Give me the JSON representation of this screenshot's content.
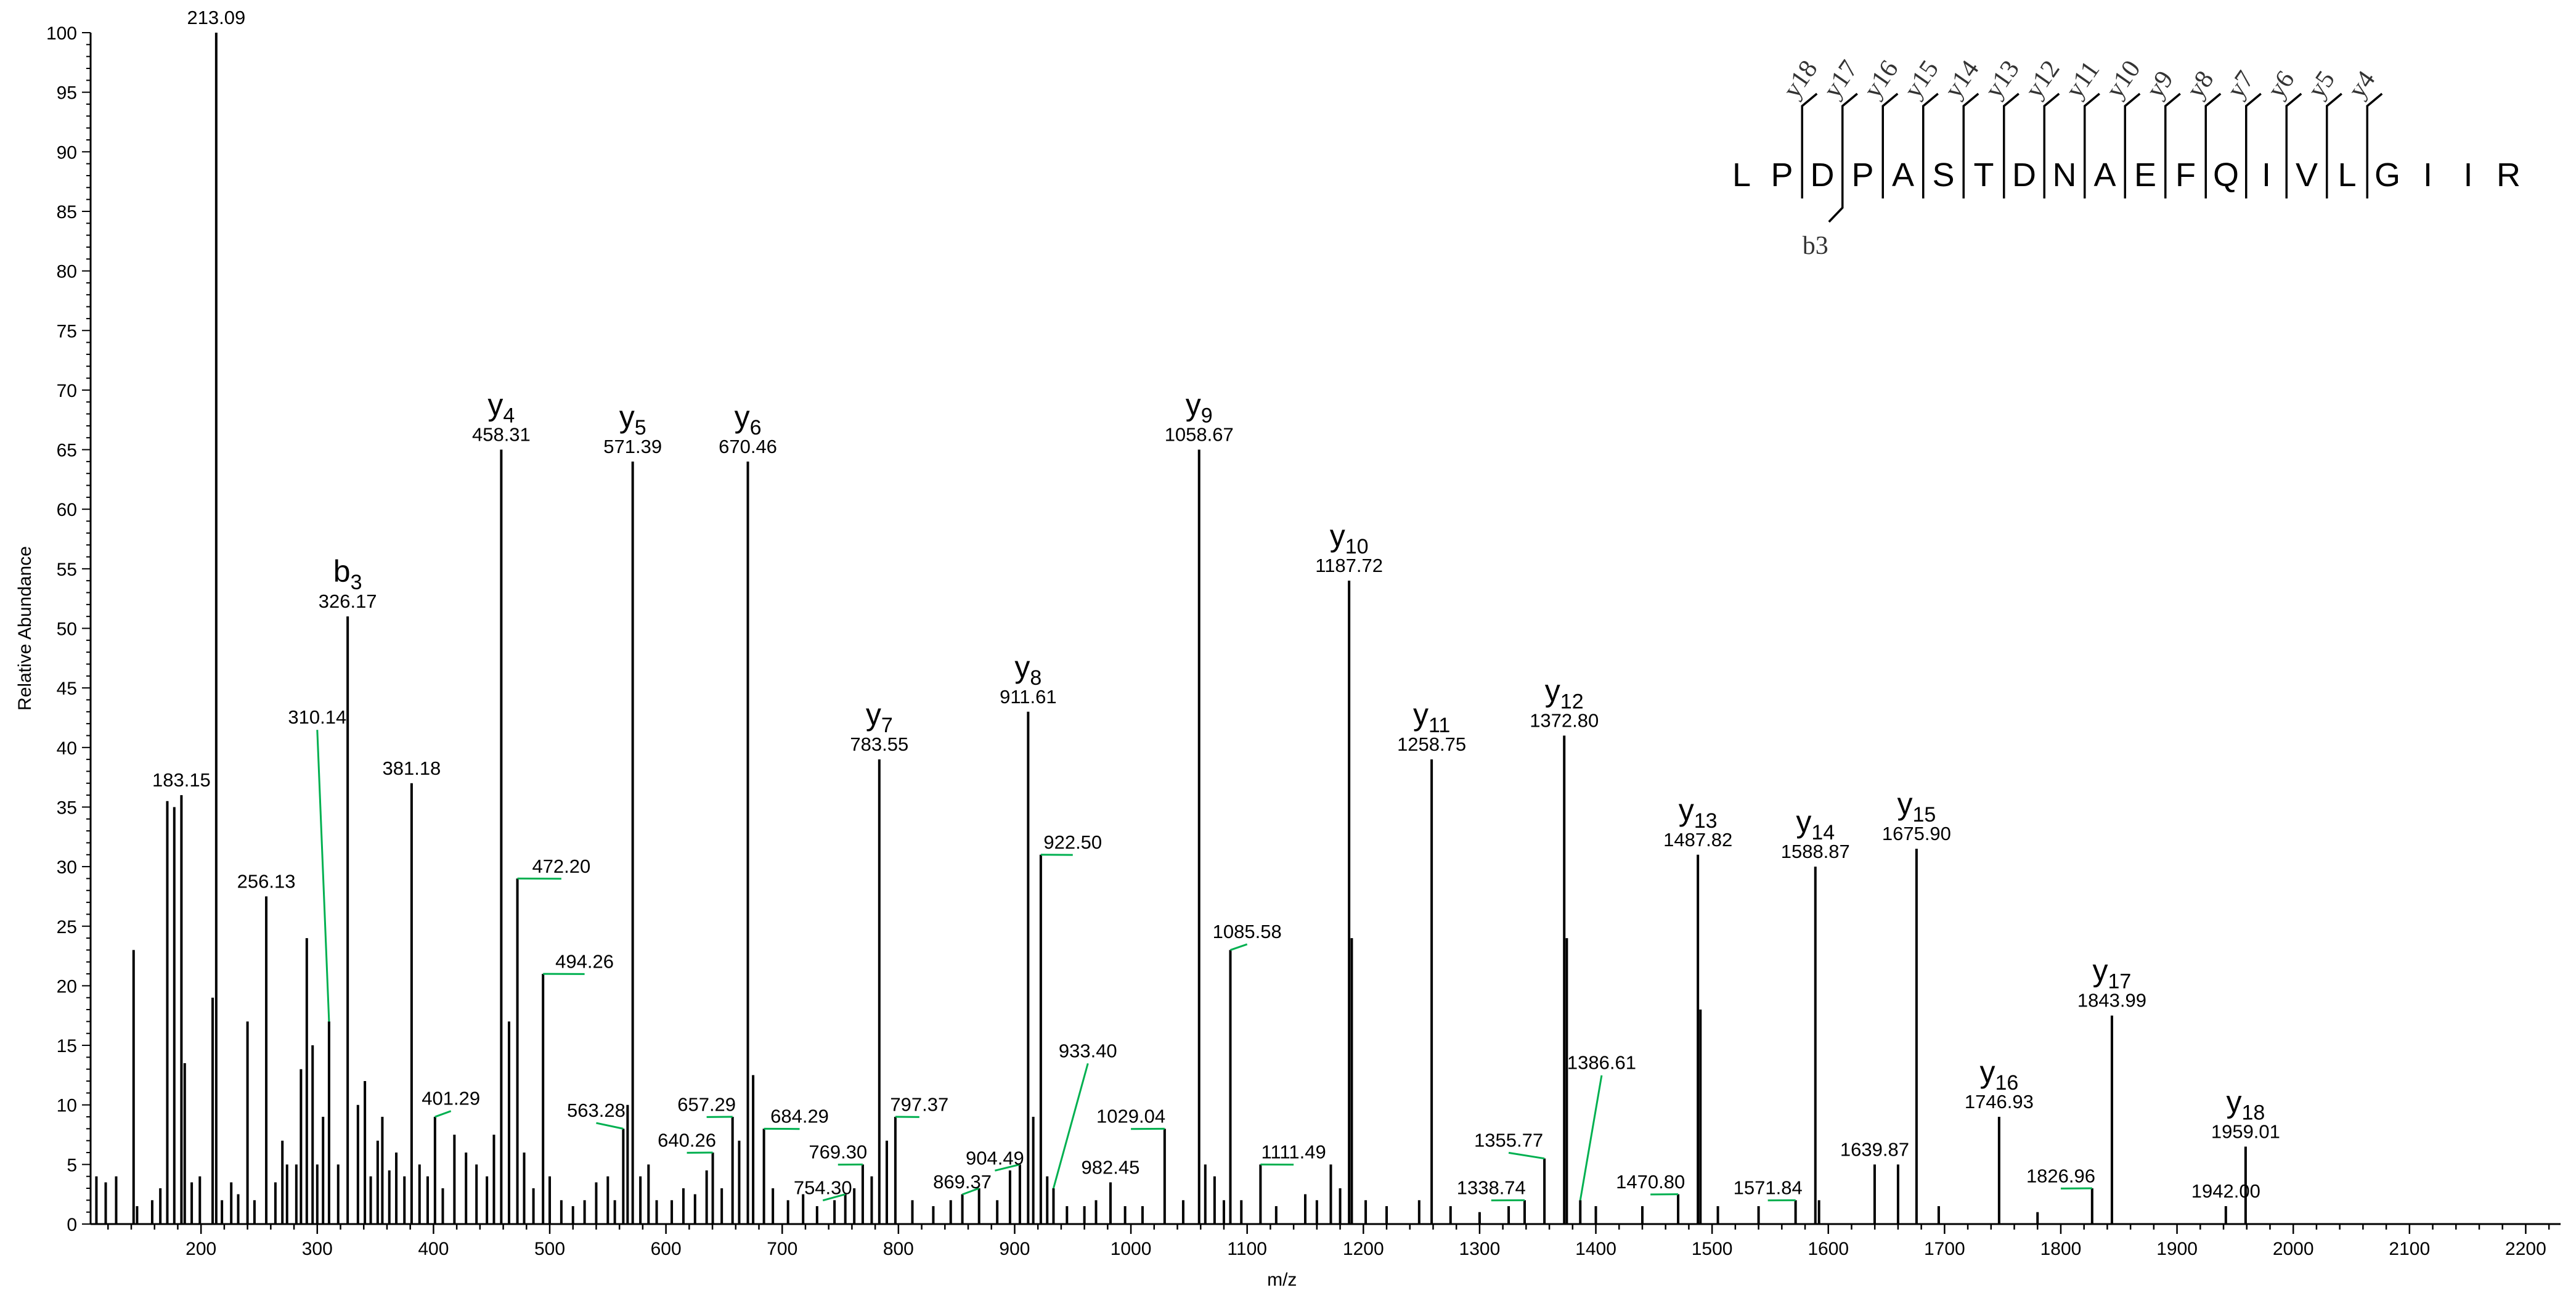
{
  "chart_data": {
    "type": "bar",
    "xlabel": "m/z",
    "ylabel": "Relative Abundance",
    "xlim": [
      105,
      2230
    ],
    "ylim": [
      0,
      100
    ],
    "x_ticks": [
      200,
      300,
      400,
      500,
      600,
      700,
      800,
      900,
      1000,
      1100,
      1200,
      1300,
      1400,
      1500,
      1600,
      1700,
      1800,
      1900,
      2000,
      2100,
      2200
    ],
    "y_ticks": [
      0,
      5,
      10,
      15,
      20,
      25,
      30,
      35,
      40,
      45,
      50,
      55,
      60,
      65,
      70,
      75,
      80,
      85,
      90,
      95,
      100
    ],
    "peaks": [
      {
        "mz": 110,
        "intensity": 4
      },
      {
        "mz": 118,
        "intensity": 3.5
      },
      {
        "mz": 127,
        "intensity": 4
      },
      {
        "mz": 142,
        "intensity": 23
      },
      {
        "mz": 145,
        "intensity": 1.5
      },
      {
        "mz": 158,
        "intensity": 2
      },
      {
        "mz": 165,
        "intensity": 3
      },
      {
        "mz": 171,
        "intensity": 35.5
      },
      {
        "mz": 177,
        "intensity": 35
      },
      {
        "mz": 183.15,
        "intensity": 36
      },
      {
        "mz": 186,
        "intensity": 13.5
      },
      {
        "mz": 192,
        "intensity": 3.5
      },
      {
        "mz": 199,
        "intensity": 4
      },
      {
        "mz": 210,
        "intensity": 19
      },
      {
        "mz": 213.09,
        "intensity": 100
      },
      {
        "mz": 218,
        "intensity": 2
      },
      {
        "mz": 226,
        "intensity": 3.5
      },
      {
        "mz": 232,
        "intensity": 2.5
      },
      {
        "mz": 240,
        "intensity": 17
      },
      {
        "mz": 246,
        "intensity": 2
      },
      {
        "mz": 256.13,
        "intensity": 27.5
      },
      {
        "mz": 264,
        "intensity": 3.5
      },
      {
        "mz": 270,
        "intensity": 7
      },
      {
        "mz": 274,
        "intensity": 5
      },
      {
        "mz": 282,
        "intensity": 5
      },
      {
        "mz": 286,
        "intensity": 13
      },
      {
        "mz": 291,
        "intensity": 24
      },
      {
        "mz": 296,
        "intensity": 15
      },
      {
        "mz": 300,
        "intensity": 5
      },
      {
        "mz": 305,
        "intensity": 9
      },
      {
        "mz": 310.14,
        "intensity": 17
      },
      {
        "mz": 318,
        "intensity": 5
      },
      {
        "mz": 326.17,
        "intensity": 51
      },
      {
        "mz": 335,
        "intensity": 10
      },
      {
        "mz": 341,
        "intensity": 12
      },
      {
        "mz": 346,
        "intensity": 4
      },
      {
        "mz": 352,
        "intensity": 7
      },
      {
        "mz": 356,
        "intensity": 9
      },
      {
        "mz": 362,
        "intensity": 4.5
      },
      {
        "mz": 368,
        "intensity": 6
      },
      {
        "mz": 375,
        "intensity": 4
      },
      {
        "mz": 381.18,
        "intensity": 37
      },
      {
        "mz": 388,
        "intensity": 5
      },
      {
        "mz": 395,
        "intensity": 4
      },
      {
        "mz": 401.29,
        "intensity": 9
      },
      {
        "mz": 408,
        "intensity": 3
      },
      {
        "mz": 418,
        "intensity": 7.5
      },
      {
        "mz": 428,
        "intensity": 6
      },
      {
        "mz": 437,
        "intensity": 5
      },
      {
        "mz": 446,
        "intensity": 4
      },
      {
        "mz": 452,
        "intensity": 7.5
      },
      {
        "mz": 458.31,
        "intensity": 65
      },
      {
        "mz": 465,
        "intensity": 17
      },
      {
        "mz": 472.2,
        "intensity": 29
      },
      {
        "mz": 478,
        "intensity": 6
      },
      {
        "mz": 486,
        "intensity": 3
      },
      {
        "mz": 494.26,
        "intensity": 21
      },
      {
        "mz": 500,
        "intensity": 4
      },
      {
        "mz": 510,
        "intensity": 2
      },
      {
        "mz": 520,
        "intensity": 1.5
      },
      {
        "mz": 530,
        "intensity": 2
      },
      {
        "mz": 540,
        "intensity": 3.5
      },
      {
        "mz": 550,
        "intensity": 4
      },
      {
        "mz": 556,
        "intensity": 2
      },
      {
        "mz": 563.28,
        "intensity": 8
      },
      {
        "mz": 567,
        "intensity": 10
      },
      {
        "mz": 571.39,
        "intensity": 64
      },
      {
        "mz": 578,
        "intensity": 4
      },
      {
        "mz": 585,
        "intensity": 5
      },
      {
        "mz": 592,
        "intensity": 2
      },
      {
        "mz": 605,
        "intensity": 2
      },
      {
        "mz": 615,
        "intensity": 3
      },
      {
        "mz": 625,
        "intensity": 2.5
      },
      {
        "mz": 635,
        "intensity": 4.5
      },
      {
        "mz": 640.26,
        "intensity": 6
      },
      {
        "mz": 648,
        "intensity": 3
      },
      {
        "mz": 657.29,
        "intensity": 9
      },
      {
        "mz": 663,
        "intensity": 7
      },
      {
        "mz": 670.46,
        "intensity": 64
      },
      {
        "mz": 675,
        "intensity": 12.5
      },
      {
        "mz": 684.29,
        "intensity": 8
      },
      {
        "mz": 692,
        "intensity": 3
      },
      {
        "mz": 705,
        "intensity": 2
      },
      {
        "mz": 718,
        "intensity": 2.5
      },
      {
        "mz": 730,
        "intensity": 1.5
      },
      {
        "mz": 745,
        "intensity": 2
      },
      {
        "mz": 754.3,
        "intensity": 2.5
      },
      {
        "mz": 762,
        "intensity": 3
      },
      {
        "mz": 769.3,
        "intensity": 5
      },
      {
        "mz": 777,
        "intensity": 4
      },
      {
        "mz": 783.55,
        "intensity": 39
      },
      {
        "mz": 790,
        "intensity": 7
      },
      {
        "mz": 797.37,
        "intensity": 9
      },
      {
        "mz": 812,
        "intensity": 2
      },
      {
        "mz": 830,
        "intensity": 1.5
      },
      {
        "mz": 845,
        "intensity": 2
      },
      {
        "mz": 855,
        "intensity": 2.5
      },
      {
        "mz": 869.37,
        "intensity": 3
      },
      {
        "mz": 885,
        "intensity": 2
      },
      {
        "mz": 896,
        "intensity": 4.5
      },
      {
        "mz": 904.49,
        "intensity": 5
      },
      {
        "mz": 911.61,
        "intensity": 43
      },
      {
        "mz": 916,
        "intensity": 9
      },
      {
        "mz": 922.5,
        "intensity": 31
      },
      {
        "mz": 928,
        "intensity": 4
      },
      {
        "mz": 933.4,
        "intensity": 3
      },
      {
        "mz": 945,
        "intensity": 1.5
      },
      {
        "mz": 960,
        "intensity": 1.5
      },
      {
        "mz": 970,
        "intensity": 2
      },
      {
        "mz": 982.45,
        "intensity": 3.5
      },
      {
        "mz": 995,
        "intensity": 1.5
      },
      {
        "mz": 1010,
        "intensity": 1.5
      },
      {
        "mz": 1029.04,
        "intensity": 8
      },
      {
        "mz": 1045,
        "intensity": 2
      },
      {
        "mz": 1058.67,
        "intensity": 65
      },
      {
        "mz": 1064,
        "intensity": 5
      },
      {
        "mz": 1072,
        "intensity": 4
      },
      {
        "mz": 1080,
        "intensity": 2
      },
      {
        "mz": 1085.58,
        "intensity": 23
      },
      {
        "mz": 1095,
        "intensity": 2
      },
      {
        "mz": 1111.49,
        "intensity": 5
      },
      {
        "mz": 1125,
        "intensity": 1.5
      },
      {
        "mz": 1150,
        "intensity": 2.5
      },
      {
        "mz": 1160,
        "intensity": 2
      },
      {
        "mz": 1172,
        "intensity": 5
      },
      {
        "mz": 1180,
        "intensity": 3
      },
      {
        "mz": 1187.72,
        "intensity": 54
      },
      {
        "mz": 1190,
        "intensity": 24
      },
      {
        "mz": 1202,
        "intensity": 2
      },
      {
        "mz": 1220,
        "intensity": 1.5
      },
      {
        "mz": 1248,
        "intensity": 2
      },
      {
        "mz": 1258.75,
        "intensity": 39
      },
      {
        "mz": 1275,
        "intensity": 1.5
      },
      {
        "mz": 1300,
        "intensity": 1
      },
      {
        "mz": 1325,
        "intensity": 1.5
      },
      {
        "mz": 1338.74,
        "intensity": 2
      },
      {
        "mz": 1355.77,
        "intensity": 5.5
      },
      {
        "mz": 1372.8,
        "intensity": 41
      },
      {
        "mz": 1375,
        "intensity": 24
      },
      {
        "mz": 1386.61,
        "intensity": 2
      },
      {
        "mz": 1400,
        "intensity": 1.5
      },
      {
        "mz": 1440,
        "intensity": 1.5
      },
      {
        "mz": 1470.8,
        "intensity": 2.5
      },
      {
        "mz": 1487.82,
        "intensity": 31
      },
      {
        "mz": 1490,
        "intensity": 18
      },
      {
        "mz": 1505,
        "intensity": 1.5
      },
      {
        "mz": 1540,
        "intensity": 1.5
      },
      {
        "mz": 1571.84,
        "intensity": 2
      },
      {
        "mz": 1588.87,
        "intensity": 30
      },
      {
        "mz": 1592,
        "intensity": 2
      },
      {
        "mz": 1639.87,
        "intensity": 5
      },
      {
        "mz": 1660,
        "intensity": 5
      },
      {
        "mz": 1675.9,
        "intensity": 31.5
      },
      {
        "mz": 1695,
        "intensity": 1.5
      },
      {
        "mz": 1746.93,
        "intensity": 9
      },
      {
        "mz": 1780,
        "intensity": 1
      },
      {
        "mz": 1826.96,
        "intensity": 3
      },
      {
        "mz": 1843.99,
        "intensity": 17.5
      },
      {
        "mz": 1942.0,
        "intensity": 1.5
      },
      {
        "mz": 1959.01,
        "intensity": 6.5
      }
    ],
    "labels": [
      {
        "mz": 213.09,
        "text": "213.09"
      },
      {
        "mz": 183.15,
        "text": "183.15"
      },
      {
        "mz": 256.13,
        "text": "256.13"
      },
      {
        "mz": 310.14,
        "text": "310.14",
        "leader": true,
        "label_mz": 300,
        "label_y": 42
      },
      {
        "mz": 326.17,
        "text": "326.17",
        "ion": "b",
        "num": "3"
      },
      {
        "mz": 381.18,
        "text": "381.18"
      },
      {
        "mz": 401.29,
        "text": "401.29",
        "leader": true,
        "label_mz": 415,
        "label_y": 10
      },
      {
        "mz": 458.31,
        "text": "458.31",
        "ion": "y",
        "num": "4"
      },
      {
        "mz": 472.2,
        "text": "472.20",
        "leader": true,
        "label_mz": 510,
        "label_y": 29.5
      },
      {
        "mz": 494.26,
        "text": "494.26",
        "leader": true,
        "label_mz": 530,
        "label_y": 21.5
      },
      {
        "mz": 563.28,
        "text": "563.28",
        "leader": true,
        "label_mz": 540,
        "label_y": 9
      },
      {
        "mz": 571.39,
        "text": "571.39",
        "ion": "y",
        "num": "5"
      },
      {
        "mz": 640.26,
        "text": "640.26",
        "leader": true,
        "label_mz": 618,
        "label_y": 6.5
      },
      {
        "mz": 657.29,
        "text": "657.29",
        "leader": true,
        "label_mz": 635,
        "label_y": 9.5
      },
      {
        "mz": 670.46,
        "text": "670.46",
        "ion": "y",
        "num": "6"
      },
      {
        "mz": 684.29,
        "text": "684.29",
        "leader": true,
        "label_mz": 715,
        "label_y": 8.5
      },
      {
        "mz": 754.3,
        "text": "754.30",
        "leader": true,
        "label_mz": 735,
        "label_y": 2.5
      },
      {
        "mz": 769.3,
        "text": "769.30",
        "leader": true,
        "label_mz": 748,
        "label_y": 5.5
      },
      {
        "mz": 783.55,
        "text": "783.55",
        "ion": "y",
        "num": "7"
      },
      {
        "mz": 797.37,
        "text": "797.37",
        "leader": true,
        "label_mz": 818,
        "label_y": 9.5
      },
      {
        "mz": 869.37,
        "text": "869.37",
        "leader": true,
        "label_mz": 855,
        "label_y": 3
      },
      {
        "mz": 904.49,
        "text": "904.49",
        "leader": true,
        "label_mz": 883,
        "label_y": 5
      },
      {
        "mz": 911.61,
        "text": "911.61",
        "ion": "y",
        "num": "8"
      },
      {
        "mz": 922.5,
        "text": "922.50",
        "leader": true,
        "label_mz": 950,
        "label_y": 31.5
      },
      {
        "mz": 933.4,
        "text": "933.40",
        "leader": true,
        "label_mz": 963,
        "label_y": 14
      },
      {
        "mz": 982.45,
        "text": "982.45"
      },
      {
        "mz": 1029.04,
        "text": "1029.04",
        "leader": true,
        "label_mz": 1000,
        "label_y": 8.5
      },
      {
        "mz": 1058.67,
        "text": "1058.67",
        "ion": "y",
        "num": "9"
      },
      {
        "mz": 1085.58,
        "text": "1085.58",
        "leader": true,
        "label_mz": 1100,
        "label_y": 24
      },
      {
        "mz": 1111.49,
        "text": "1111.49",
        "leader": true,
        "label_mz": 1140,
        "label_y": 5.5
      },
      {
        "mz": 1187.72,
        "text": "1187.72",
        "ion": "y",
        "num": "10"
      },
      {
        "mz": 1258.75,
        "text": "1258.75",
        "ion": "y",
        "num": "11"
      },
      {
        "mz": 1338.74,
        "text": "1338.74",
        "leader": true,
        "label_mz": 1310,
        "label_y": 2.5
      },
      {
        "mz": 1355.77,
        "text": "1355.77",
        "leader": true,
        "label_mz": 1325,
        "label_y": 6.5
      },
      {
        "mz": 1372.8,
        "text": "1372.80",
        "ion": "y",
        "num": "12"
      },
      {
        "mz": 1386.61,
        "text": "1386.61",
        "leader": true,
        "label_mz": 1405,
        "label_y": 13
      },
      {
        "mz": 1470.8,
        "text": "1470.80",
        "leader": true,
        "label_mz": 1447,
        "label_y": 3
      },
      {
        "mz": 1487.82,
        "text": "1487.82",
        "ion": "y",
        "num": "13"
      },
      {
        "mz": 1571.84,
        "text": "1571.84",
        "leader": true,
        "label_mz": 1548,
        "label_y": 2.5
      },
      {
        "mz": 1588.87,
        "text": "1588.87",
        "ion": "y",
        "num": "14"
      },
      {
        "mz": 1639.87,
        "text": "1639.87"
      },
      {
        "mz": 1675.9,
        "text": "1675.90",
        "ion": "y",
        "num": "15"
      },
      {
        "mz": 1746.93,
        "text": "1746.93",
        "ion": "y",
        "num": "16"
      },
      {
        "mz": 1826.96,
        "text": "1826.96",
        "leader": true,
        "label_mz": 1800,
        "label_y": 3.5
      },
      {
        "mz": 1843.99,
        "text": "1843.99",
        "ion": "y",
        "num": "17"
      },
      {
        "mz": 1942.0,
        "text": "1942.00"
      },
      {
        "mz": 1959.01,
        "text": "1959.01",
        "ion": "y",
        "num": "18"
      }
    ],
    "sequence": {
      "residues": [
        "L",
        "P",
        "D",
        "P",
        "A",
        "S",
        "T",
        "D",
        "N",
        "A",
        "E",
        "F",
        "Q",
        "I",
        "V",
        "L",
        "G",
        "I",
        "I",
        "R"
      ],
      "y_ions": [
        {
          "label": "y18",
          "after": 2
        },
        {
          "label": "y17",
          "after": 3
        },
        {
          "label": "y16",
          "after": 4
        },
        {
          "label": "y15",
          "after": 5
        },
        {
          "label": "y14",
          "after": 6
        },
        {
          "label": "y13",
          "after": 7
        },
        {
          "label": "y12",
          "after": 8
        },
        {
          "label": "y11",
          "after": 9
        },
        {
          "label": "y10",
          "after": 10
        },
        {
          "label": "y9",
          "after": 11
        },
        {
          "label": "y8",
          "after": 12
        },
        {
          "label": "y7",
          "after": 13
        },
        {
          "label": "y6",
          "after": 14
        },
        {
          "label": "y5",
          "after": 15
        },
        {
          "label": "y4",
          "after": 16
        }
      ],
      "b_ions": [
        {
          "label": "b3",
          "after": 3
        }
      ]
    },
    "colors": {
      "peaks": "#000000",
      "leaders": "#00b050",
      "axes": "#000000"
    }
  }
}
